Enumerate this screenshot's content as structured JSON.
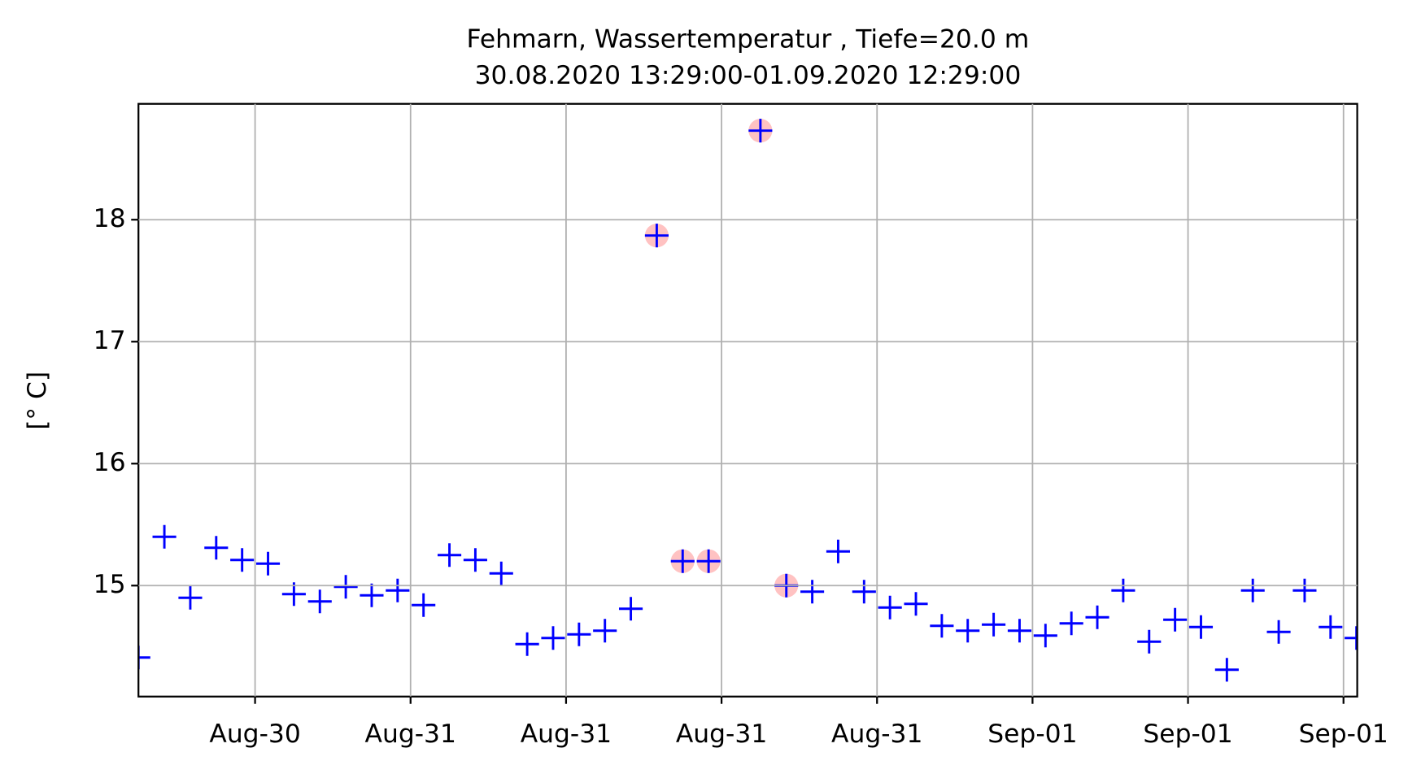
{
  "chart_data": {
    "type": "scatter",
    "title": "Fehmarn, Wassertemperatur , Tiefe=20.0 m",
    "subtitle": "30.08.2020 13:29:00-01.09.2020 12:29:00",
    "y_label": "[° C]",
    "x": [
      0,
      1,
      2,
      3,
      4,
      5,
      6,
      7,
      8,
      9,
      10,
      11,
      12,
      13,
      14,
      15,
      16,
      17,
      18,
      19,
      20,
      21,
      22,
      23,
      24,
      25,
      26,
      27,
      28,
      29,
      30,
      31,
      32,
      33,
      34,
      35,
      36,
      37,
      38,
      39,
      40,
      41,
      42,
      43,
      44,
      45,
      46,
      47
    ],
    "series": [
      {
        "color": "#0000ff",
        "marker": "plus",
        "values": [
          14.41,
          15.4,
          14.9,
          15.31,
          15.21,
          15.18,
          14.93,
          14.87,
          14.99,
          14.92,
          14.96,
          14.84,
          15.25,
          15.21,
          15.1,
          14.52,
          14.57,
          14.6,
          14.63,
          14.81,
          17.87,
          15.2,
          15.2,
          null,
          18.73,
          15.0,
          14.95,
          15.28,
          14.95,
          14.82,
          14.85,
          14.67,
          14.63,
          14.68,
          14.63,
          14.59,
          14.69,
          14.74,
          14.96,
          14.54,
          14.72,
          14.66,
          14.31,
          14.96,
          14.62,
          14.96,
          14.66,
          14.57
        ]
      },
      {
        "color": "#ffb3b3",
        "marker": "circle",
        "values": [
          null,
          null,
          null,
          null,
          null,
          null,
          null,
          null,
          null,
          null,
          null,
          null,
          null,
          null,
          null,
          null,
          null,
          null,
          null,
          null,
          17.87,
          15.2,
          15.2,
          null,
          18.73,
          15.0,
          null,
          null,
          null,
          null,
          null,
          null,
          null,
          null,
          null,
          null,
          null,
          null,
          null,
          null,
          null,
          null,
          null,
          null,
          null,
          null,
          null,
          null
        ]
      }
    ],
    "xlim": [
      0,
      47.03
    ],
    "xticks": [
      {
        "value": 4.5,
        "label": "Aug-30"
      },
      {
        "value": 10.5,
        "label": "Aug-31"
      },
      {
        "value": 16.5,
        "label": "Aug-31"
      },
      {
        "value": 22.5,
        "label": "Aug-31"
      },
      {
        "value": 28.5,
        "label": "Aug-31"
      },
      {
        "value": 34.5,
        "label": "Sep-01"
      },
      {
        "value": 40.5,
        "label": "Sep-01"
      },
      {
        "value": 46.5,
        "label": "Sep-01"
      }
    ],
    "ylim": [
      14.09,
      18.95
    ],
    "yticks": [
      15,
      16,
      17,
      18
    ],
    "grid": true
  }
}
